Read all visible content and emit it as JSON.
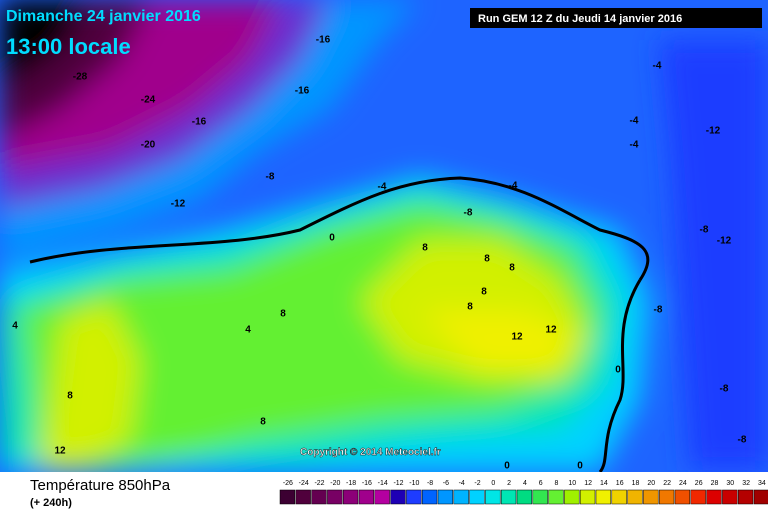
{
  "header": {
    "date": "Dimanche 24 janvier 2016",
    "time": "13:00 locale",
    "run": "Run GEM 12 Z du Jeudi 14 janvier 2016"
  },
  "copyright": "Copyright © 2014 Meteociel.fr",
  "footer": {
    "title": "Température 850hPa",
    "lead": "(+ 240h)"
  },
  "legend": {
    "ticks": [
      -26,
      -24,
      -22,
      -20,
      -18,
      -16,
      -14,
      -12,
      -10,
      -8,
      -6,
      -4,
      -2,
      0,
      2,
      4,
      6,
      8,
      10,
      12,
      14,
      16,
      18,
      20,
      22,
      24,
      26,
      28,
      30,
      32,
      34
    ],
    "colors": [
      "#3c0032",
      "#50003c",
      "#640050",
      "#780064",
      "#8c0078",
      "#a0008c",
      "#b400a0",
      "#1e00b4",
      "#1e3cff",
      "#0064ff",
      "#0096ff",
      "#00b4ff",
      "#00d2ff",
      "#00e6e6",
      "#00e6b4",
      "#00dc82",
      "#32e650",
      "#64f032",
      "#a0f000",
      "#d2f000",
      "#f0f000",
      "#f0d200",
      "#f0b400",
      "#f09600",
      "#f07800",
      "#f05000",
      "#f02800",
      "#dc0000",
      "#c80000",
      "#b40000",
      "#a00000"
    ]
  },
  "contour_labels": [
    "-28",
    "-24",
    "-20",
    "-16",
    "-16",
    "-16",
    "-12",
    "-8",
    "-4",
    "0",
    "4",
    "8",
    "8",
    "12",
    "8",
    "-4",
    "-4",
    "-4",
    "-4",
    "-12",
    "-8",
    "-8",
    "-12",
    "8",
    "8",
    "8",
    "8",
    "8",
    "12",
    "12",
    "4",
    "0",
    "0",
    "0",
    "-8",
    "-8",
    "-8"
  ]
}
